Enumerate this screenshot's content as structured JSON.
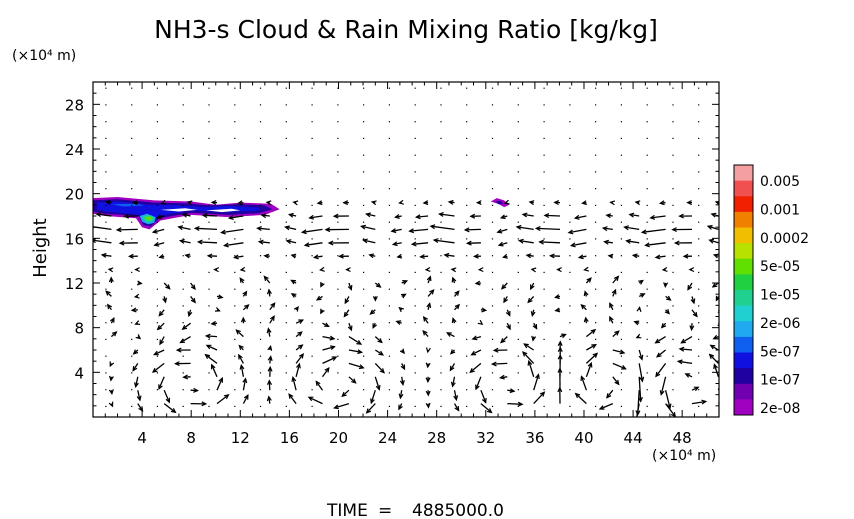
{
  "chart_data": {
    "type": "contour+vector",
    "title": "NH3-s Cloud & Rain Mixing Ratio [kg/kg]",
    "ylabel": "Height",
    "xlabel": "",
    "x_unit": "(×10⁴ m)",
    "y_unit": "(×10⁴ m)",
    "xlim": [
      0,
      51
    ],
    "ylim": [
      0,
      30
    ],
    "x_ticks": [
      4,
      8,
      12,
      16,
      20,
      24,
      28,
      32,
      36,
      40,
      44,
      48
    ],
    "y_ticks": [
      4,
      8,
      12,
      16,
      20,
      24,
      28
    ],
    "colorbar": {
      "labels": [
        "0.005",
        "0.001",
        "0.0002",
        "5e-05",
        "1e-05",
        "2e-06",
        "5e-07",
        "1e-07",
        "2e-08"
      ],
      "colors": [
        "#f4a0a0",
        "#f05050",
        "#f02000",
        "#f08000",
        "#f0c000",
        "#b8e000",
        "#60e000",
        "#20d040",
        "#20d090",
        "#20d0d0",
        "#20a8f0",
        "#1060f0",
        "#1010e0",
        "#2000a0",
        "#7000b0",
        "#a000c0"
      ]
    },
    "cloud_regions": [
      {
        "x_range": [
          0,
          15
        ],
        "y_range": [
          18.2,
          19.6
        ],
        "level": "1e-07"
      },
      {
        "x_range": [
          4,
          5
        ],
        "y_range": [
          17.0,
          18.2
        ],
        "level": "2e-06"
      },
      {
        "x_range": [
          32.5,
          33.5
        ],
        "y_range": [
          18.8,
          19.5
        ],
        "level": "2e-08"
      }
    ],
    "vector_field": "circulation cells near surface, strong westward flow at heights 14–20"
  },
  "time_label": "TIME",
  "time_value": "4885000.0"
}
